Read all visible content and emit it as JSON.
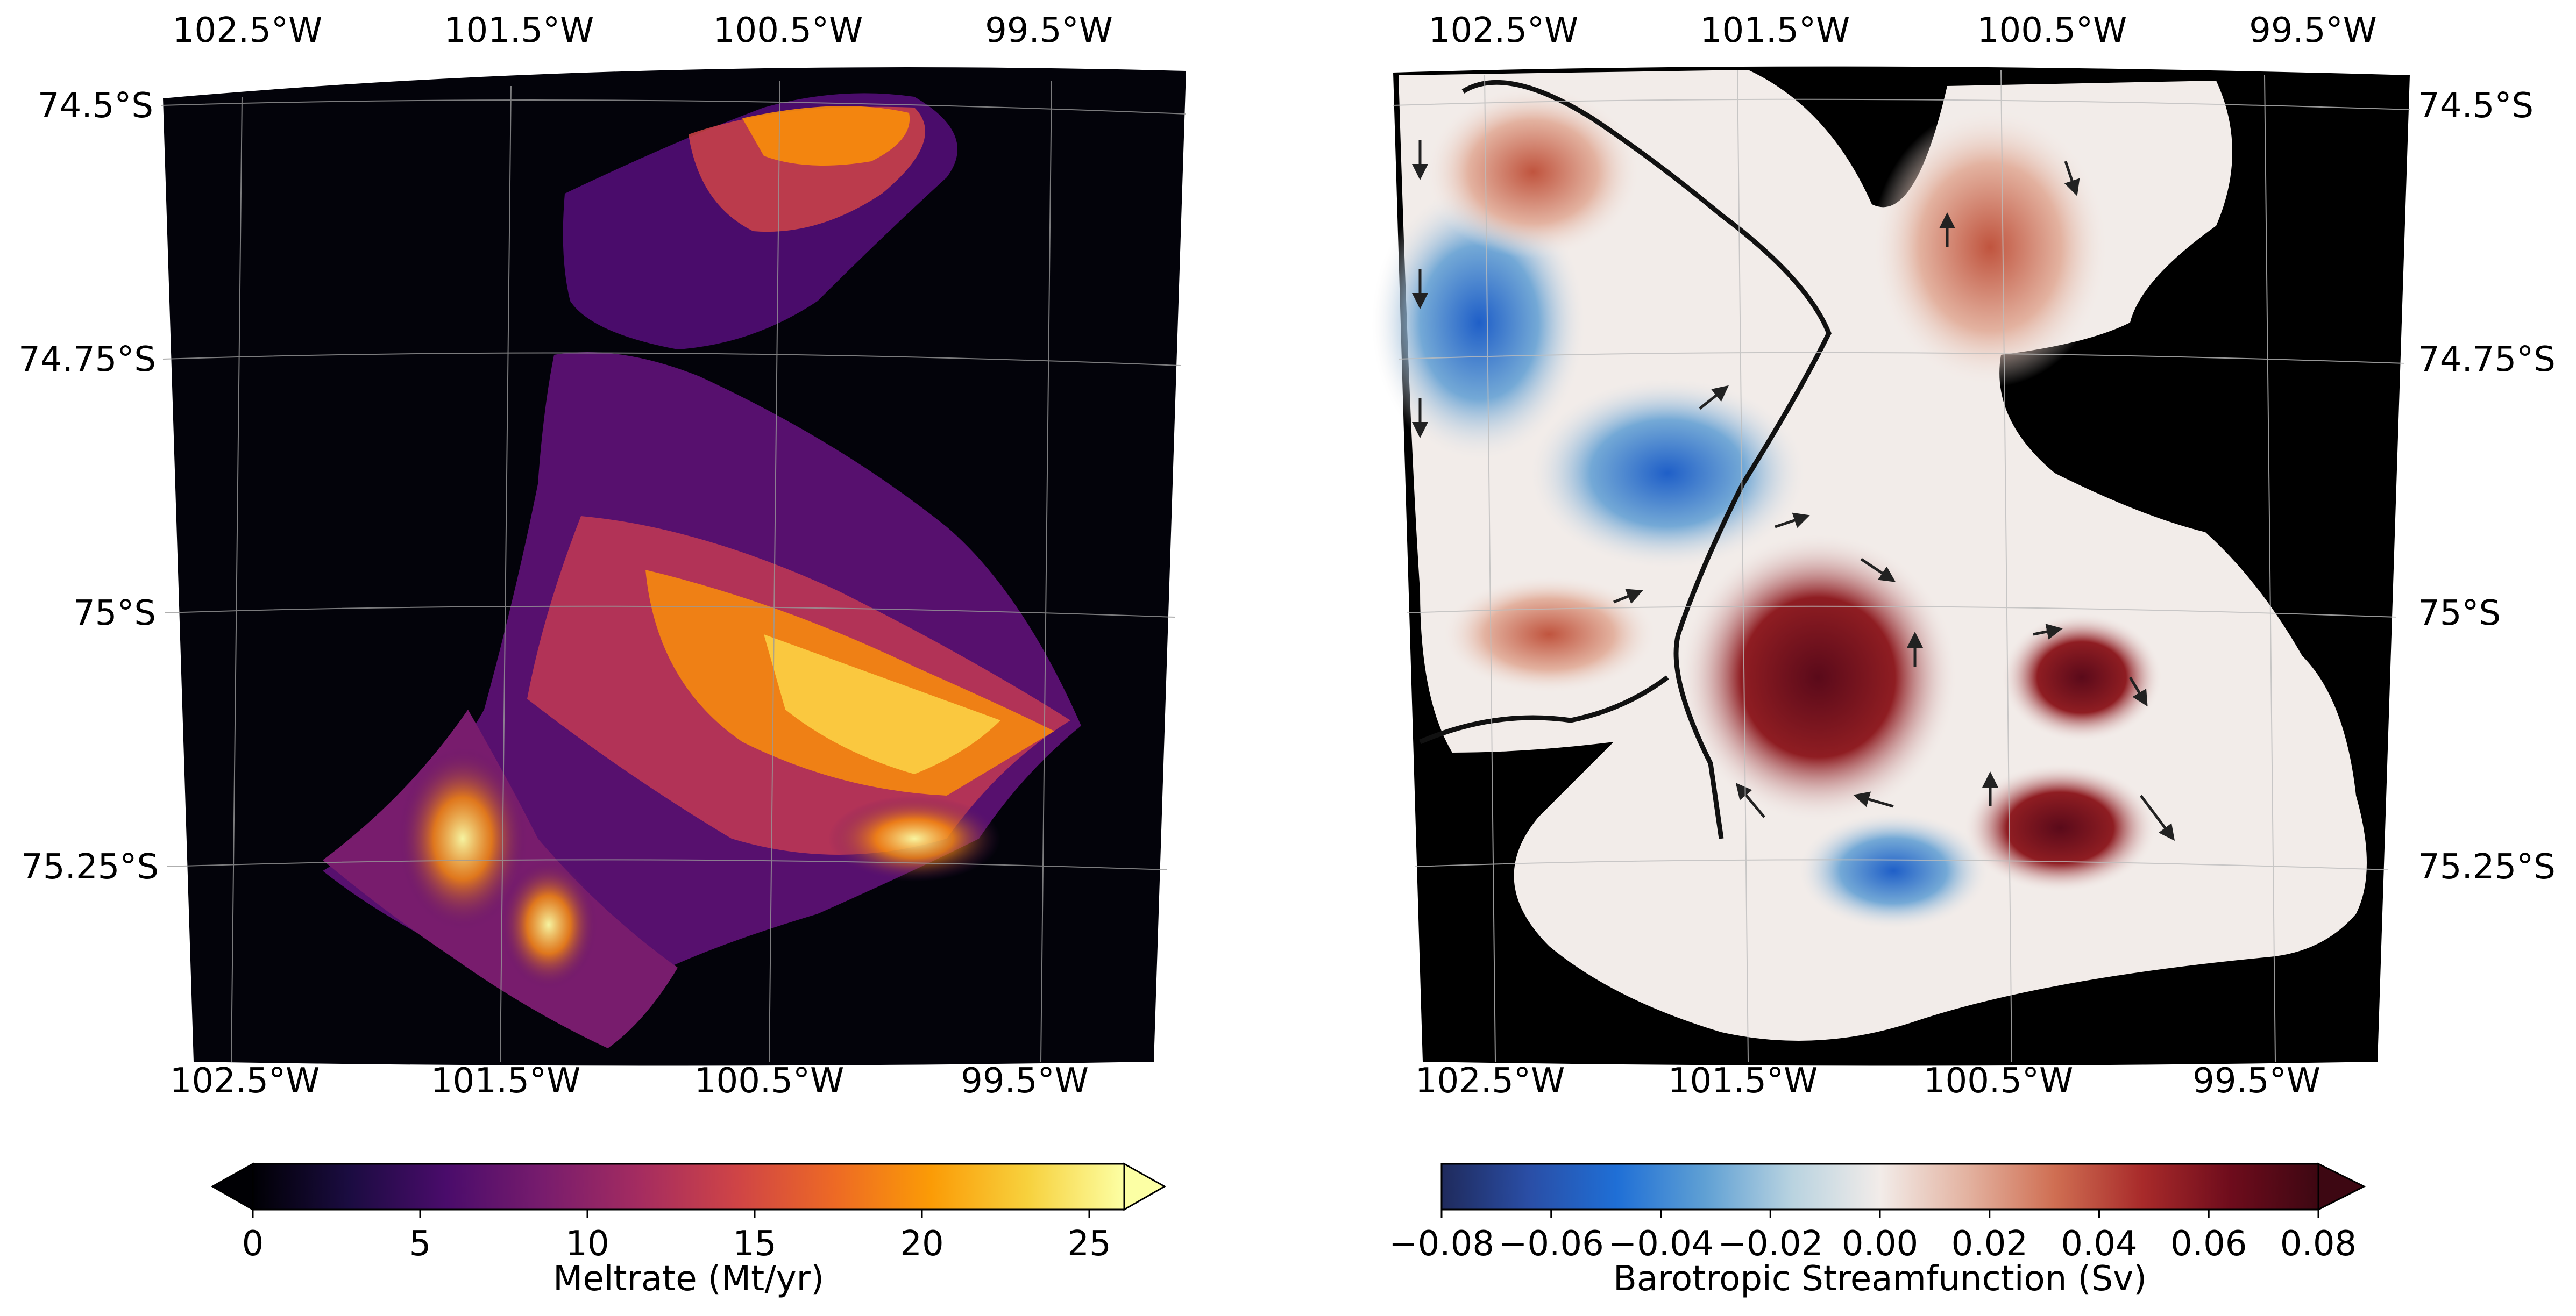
{
  "figure": {
    "panels": [
      {
        "id": "meltrate",
        "colormap": "inferno",
        "lon_ticks": [
          "102.5°W",
          "101.5°W",
          "100.5°W",
          "99.5°W"
        ],
        "lat_ticks": [
          "74.5°S",
          "74.75°S",
          "75°S",
          "75.25°S"
        ],
        "lat_tick_side": "left",
        "background": "#000000",
        "colorbar": {
          "label": "Meltrate (Mt/yr)",
          "ticks": [
            "0",
            "5",
            "10",
            "15",
            "20",
            "25"
          ],
          "range": [
            0,
            25
          ],
          "extend": "both",
          "colors": [
            "#000004",
            "#1b0c41",
            "#4a0c6b",
            "#781c6d",
            "#a52c60",
            "#cf4446",
            "#ed6925",
            "#fb9b06",
            "#f7d13d",
            "#fcffa4"
          ]
        }
      },
      {
        "id": "streamfunction",
        "colormap": "diverging blue-white-red",
        "lon_ticks": [
          "102.5°W",
          "101.5°W",
          "100.5°W",
          "99.5°W"
        ],
        "lat_ticks": [
          "74.5°S",
          "74.75°S",
          "75°S",
          "75.25°S"
        ],
        "lat_tick_side": "right",
        "background": "#000000",
        "colorbar": {
          "label": "Barotropic Streamfunction (Sv)",
          "ticks": [
            "−0.08",
            "−0.06",
            "−0.04",
            "−0.02",
            "0.00",
            "0.02",
            "0.04",
            "0.06",
            "0.08"
          ],
          "range": [
            -0.08,
            0.08
          ],
          "extend": "max",
          "colors": [
            "#1f2a5c",
            "#2a4ea6",
            "#1f6fd6",
            "#5fa0d4",
            "#b9d3e0",
            "#f2ece9",
            "#e3b2a0",
            "#cf6e52",
            "#a82a2a",
            "#6e0c1c",
            "#3d0712"
          ]
        }
      }
    ]
  }
}
